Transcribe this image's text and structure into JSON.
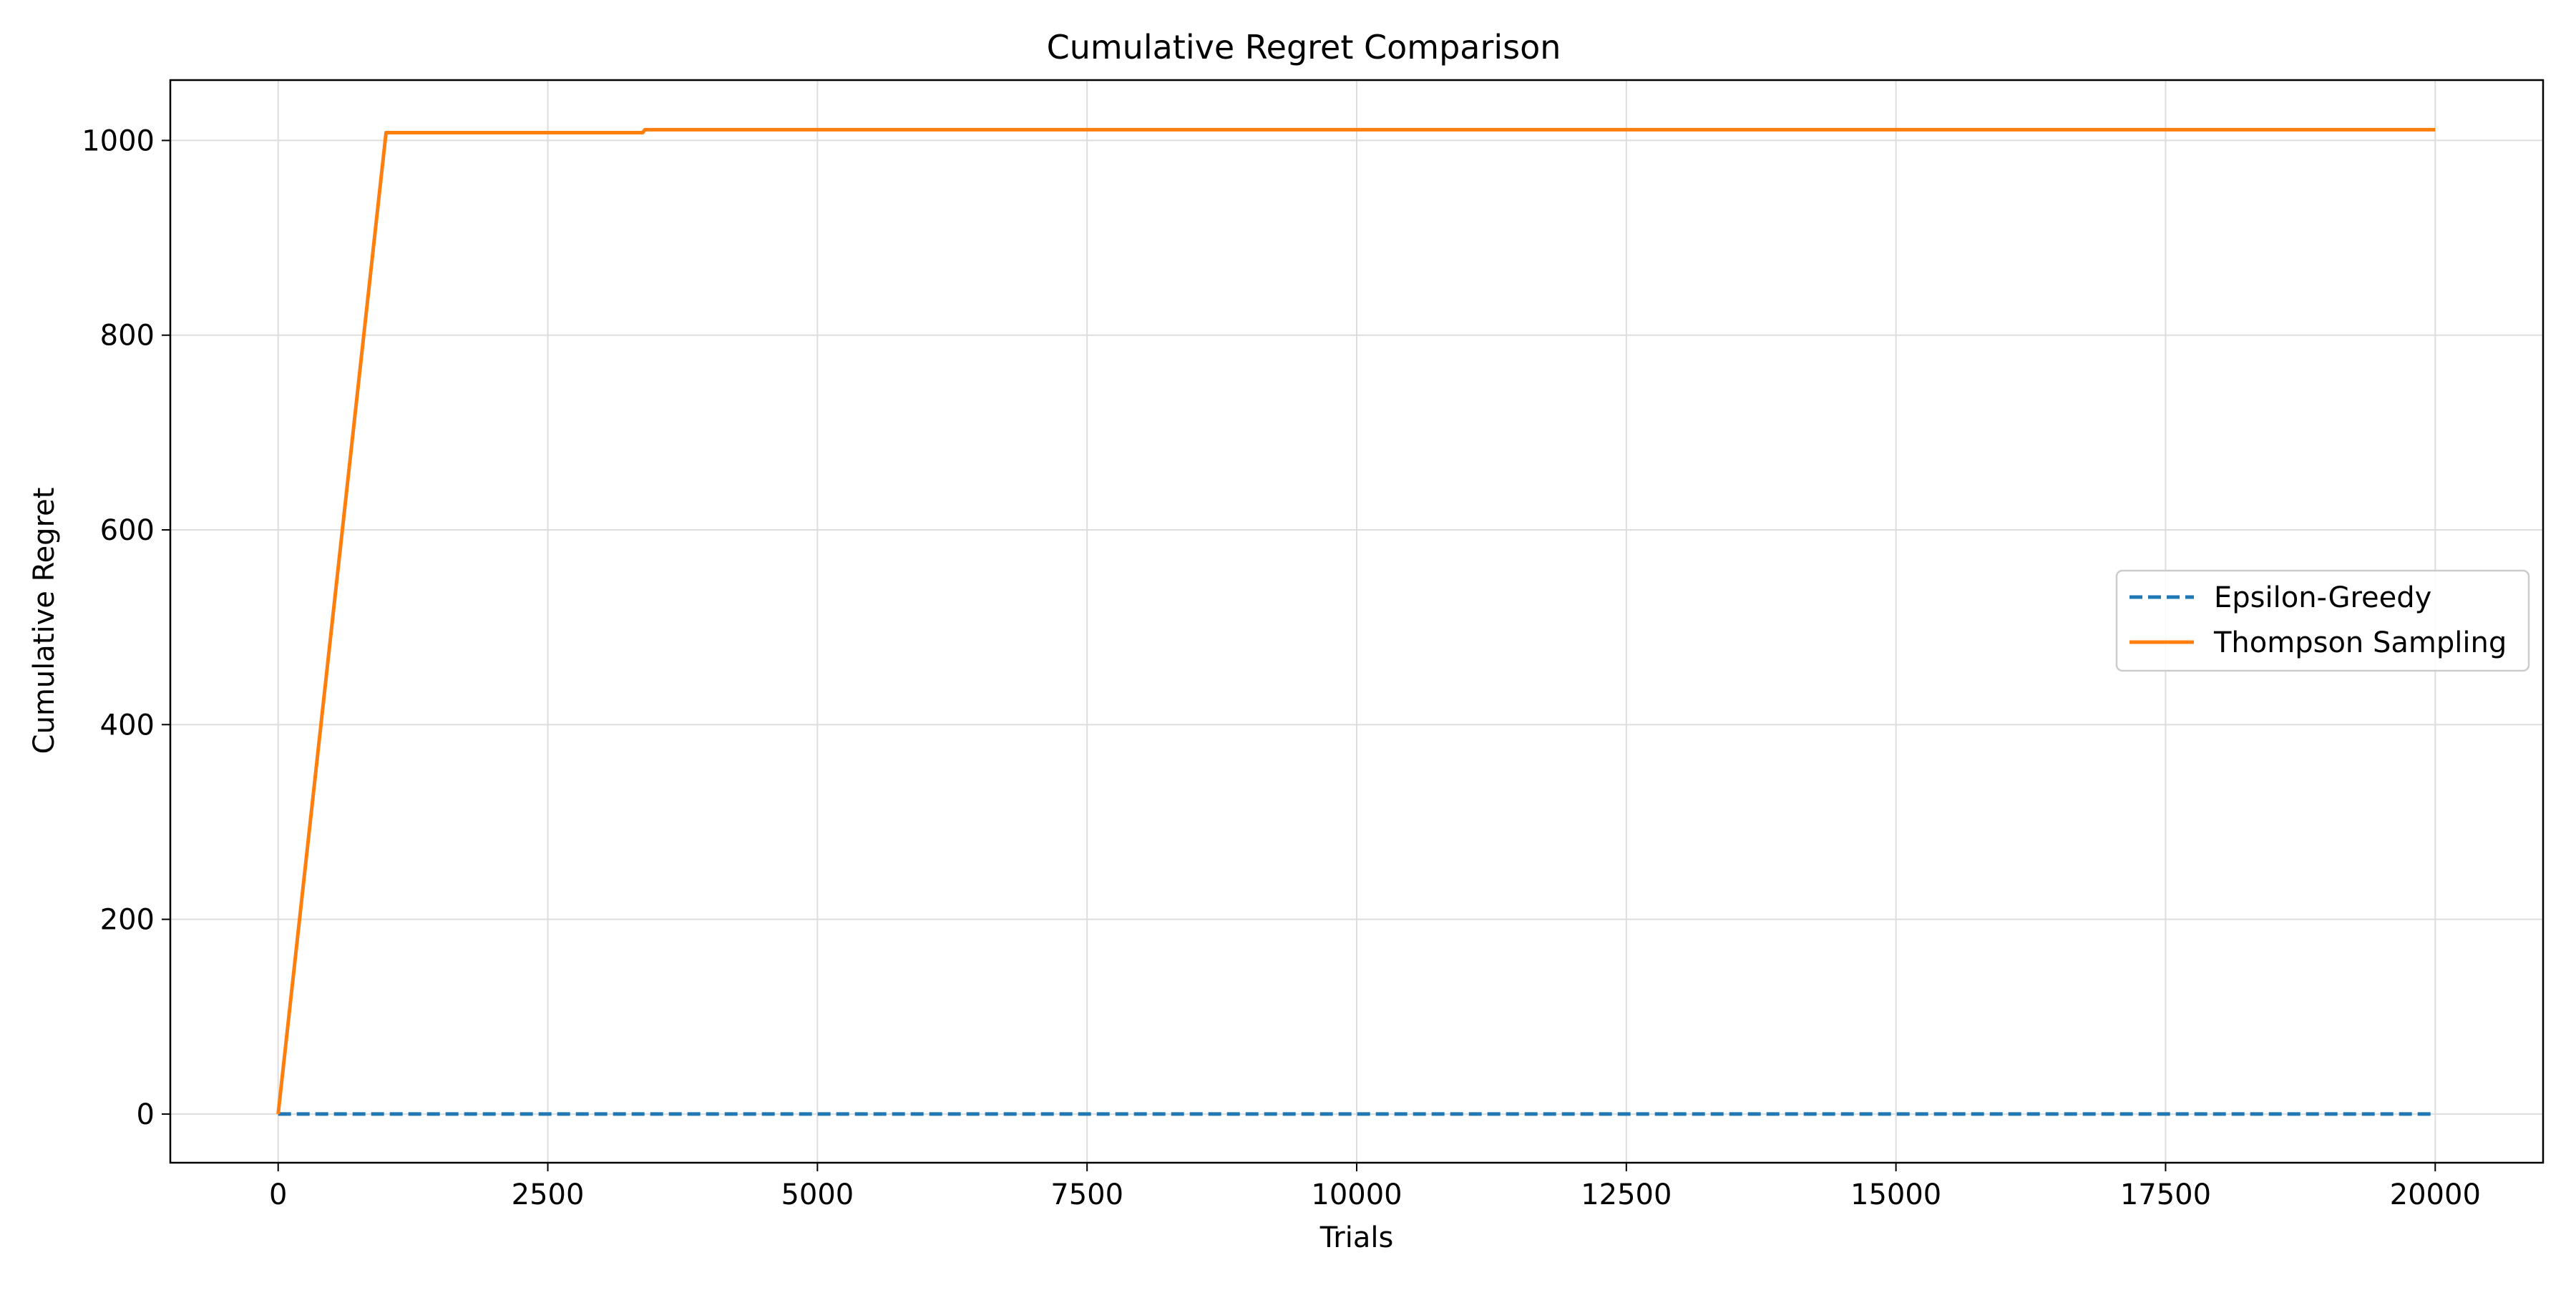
{
  "chart_data": {
    "type": "line",
    "title": "Cumulative Regret Comparison",
    "xlabel": "Trials",
    "ylabel": "Cumulative Regret",
    "xlim": [
      -1000,
      21000
    ],
    "ylim": [
      -50,
      1062
    ],
    "xticks": [
      0,
      2500,
      5000,
      7500,
      10000,
      12500,
      15000,
      17500,
      20000
    ],
    "yticks": [
      0,
      200,
      400,
      600,
      800,
      1000
    ],
    "grid": true,
    "legend_position": "center-right",
    "series": [
      {
        "name": "Epsilon-Greedy",
        "color": "#1f77b4",
        "style": "dashed",
        "points": [
          [
            0,
            0
          ],
          [
            20000,
            0
          ]
        ]
      },
      {
        "name": "Thompson Sampling",
        "color": "#ff7f0e",
        "style": "solid",
        "points": [
          [
            0,
            0
          ],
          [
            1000,
            1008
          ],
          [
            3380,
            1008
          ],
          [
            3400,
            1011
          ],
          [
            20000,
            1011
          ]
        ]
      }
    ]
  }
}
